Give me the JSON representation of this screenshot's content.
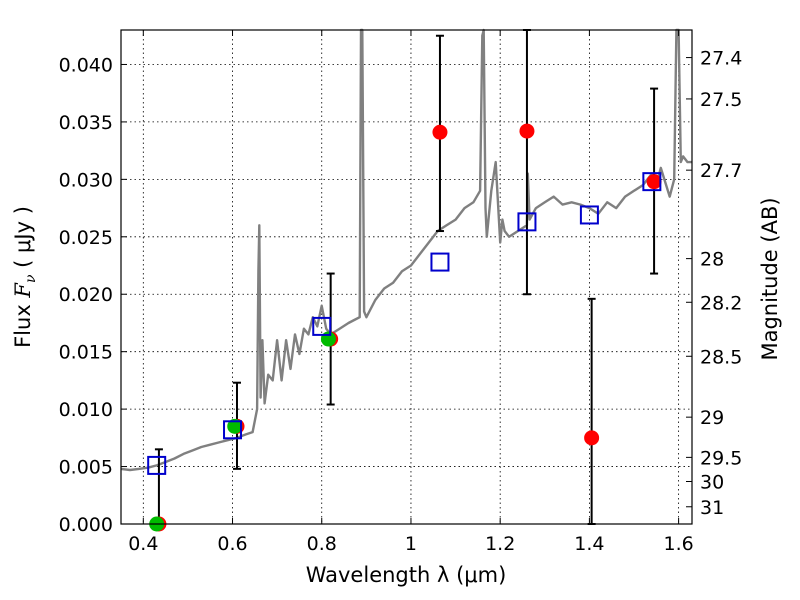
{
  "chart_data": {
    "type": "scatter",
    "xlabel": "Wavelength  λ (μm)",
    "ylabel": "Flux  F_ν  ( μJy )",
    "ylabel_parts": {
      "prefix": "Flux  ",
      "symbol": "F",
      "subscript": "ν",
      "suffix": "  ( μJy )"
    },
    "y2label": "Magnitude (AB)",
    "xlim": [
      0.35,
      1.63
    ],
    "ylim": [
      0.0,
      0.043
    ],
    "grid": true,
    "x_ticks": [
      0.4,
      0.6,
      0.8,
      1.0,
      1.2,
      1.4,
      1.6
    ],
    "x_tick_labels": [
      "0.4",
      "0.6",
      "0.8",
      "1",
      "1.2",
      "1.4",
      "1.6"
    ],
    "y_ticks": [
      0.0,
      0.005,
      0.01,
      0.015,
      0.02,
      0.025,
      0.03,
      0.035,
      0.04
    ],
    "y_tick_labels": [
      "0.000",
      "0.005",
      "0.010",
      "0.015",
      "0.020",
      "0.025",
      "0.030",
      "0.035",
      "0.040"
    ],
    "magnitude_ticks": [
      {
        "label": "27.4",
        "flux": 0.0406
      },
      {
        "label": "27.5",
        "flux": 0.037
      },
      {
        "label": "27.7",
        "flux": 0.0308
      },
      {
        "label": "28",
        "flux": 0.0231
      },
      {
        "label": "28.2",
        "flux": 0.0193
      },
      {
        "label": "28.5",
        "flux": 0.0146
      },
      {
        "label": "29",
        "flux": 0.0093
      },
      {
        "label": "29.5",
        "flux": 0.0058
      },
      {
        "label": "30",
        "flux": 0.0037
      },
      {
        "label": "31",
        "flux": 0.0015
      }
    ],
    "series": [
      {
        "kind": "line",
        "color": "#808080",
        "x": [
          0.35,
          0.37,
          0.39,
          0.41,
          0.43,
          0.45,
          0.47,
          0.49,
          0.51,
          0.53,
          0.55,
          0.57,
          0.59,
          0.61,
          0.63,
          0.645,
          0.655,
          0.658,
          0.66,
          0.663,
          0.667,
          0.672,
          0.68,
          0.69,
          0.7,
          0.71,
          0.72,
          0.73,
          0.74,
          0.75,
          0.76,
          0.77,
          0.78,
          0.79,
          0.8,
          0.81,
          0.82,
          0.84,
          0.86,
          0.875,
          0.885,
          0.888,
          0.891,
          0.895,
          0.9,
          0.92,
          0.94,
          0.96,
          0.98,
          1.0,
          1.02,
          1.04,
          1.06,
          1.08,
          1.1,
          1.12,
          1.14,
          1.155,
          1.16,
          1.163,
          1.167,
          1.17,
          1.18,
          1.19,
          1.2,
          1.205,
          1.21,
          1.22,
          1.24,
          1.26,
          1.262,
          1.266,
          1.28,
          1.3,
          1.32,
          1.34,
          1.36,
          1.38,
          1.4,
          1.42,
          1.44,
          1.46,
          1.48,
          1.5,
          1.52,
          1.54,
          1.55,
          1.56,
          1.58,
          1.59,
          1.595,
          1.6,
          1.605,
          1.61,
          1.62,
          1.63
        ],
        "y": [
          0.0048,
          0.0047,
          0.0048,
          0.0049,
          0.0051,
          0.0054,
          0.0057,
          0.0061,
          0.0064,
          0.0067,
          0.0069,
          0.0071,
          0.0073,
          0.0075,
          0.0078,
          0.008,
          0.01,
          0.022,
          0.026,
          0.011,
          0.016,
          0.0105,
          0.013,
          0.0125,
          0.016,
          0.0125,
          0.016,
          0.0135,
          0.0165,
          0.0148,
          0.017,
          0.0165,
          0.018,
          0.0172,
          0.019,
          0.017,
          0.0165,
          0.017,
          0.0175,
          0.0178,
          0.018,
          0.043,
          0.043,
          0.0185,
          0.018,
          0.0195,
          0.0205,
          0.021,
          0.022,
          0.0225,
          0.0235,
          0.0245,
          0.0255,
          0.026,
          0.0265,
          0.0275,
          0.028,
          0.029,
          0.0425,
          0.043,
          0.0275,
          0.025,
          0.029,
          0.0315,
          0.0245,
          0.0265,
          0.0255,
          0.025,
          0.0255,
          0.026,
          0.0305,
          0.0265,
          0.0275,
          0.028,
          0.0285,
          0.0278,
          0.028,
          0.0278,
          0.0275,
          0.027,
          0.028,
          0.0275,
          0.0285,
          0.029,
          0.0295,
          0.0305,
          0.0295,
          0.031,
          0.0285,
          0.03,
          0.043,
          0.043,
          0.0315,
          0.032,
          0.0315,
          0.0315
        ]
      },
      {
        "kind": "markers",
        "marker": "open-square",
        "color": "#0000cc",
        "x": [
          0.43,
          0.6,
          0.8,
          1.065,
          1.26,
          1.4,
          1.54
        ],
        "y": [
          0.0051,
          0.0082,
          0.0172,
          0.0228,
          0.0263,
          0.0269,
          0.0298
        ]
      },
      {
        "kind": "markers",
        "marker": "filled-circle",
        "color": "#00bb00",
        "x": [
          0.43,
          0.605,
          0.815
        ],
        "y": [
          0.0,
          0.0085,
          0.0161
        ]
      },
      {
        "kind": "errorbars",
        "marker": "filled-circle",
        "color": "#ff0000",
        "bar_color": "#000000",
        "points": [
          {
            "x": 0.435,
            "y": 0.0,
            "ylo": 0.0,
            "yhi": 0.0065
          },
          {
            "x": 0.61,
            "y": 0.0085,
            "ylo": 0.0048,
            "yhi": 0.0123
          },
          {
            "x": 0.82,
            "y": 0.0161,
            "ylo": 0.0104,
            "yhi": 0.0218
          },
          {
            "x": 1.065,
            "y": 0.0341,
            "ylo": 0.0255,
            "yhi": 0.0425
          },
          {
            "x": 1.26,
            "y": 0.0342,
            "ylo": 0.02,
            "yhi": 0.043
          },
          {
            "x": 1.405,
            "y": 0.0075,
            "ylo": 0.0,
            "yhi": 0.0196
          },
          {
            "x": 1.545,
            "y": 0.0298,
            "ylo": 0.0218,
            "yhi": 0.0379
          }
        ]
      }
    ]
  }
}
